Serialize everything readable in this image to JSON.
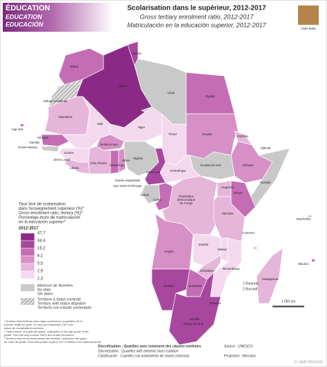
{
  "header": {
    "tags": [
      "ÉDUCATION",
      "EDUCATION",
      "EDUCACIÓN"
    ],
    "title": "Scolarisation dans le supérieur, 2012-2017",
    "subtitle_en": "Gross tertiary enrolment ratio, 2012-2017",
    "subtitle_es": "Matriculación en la educación superior, 2012-2017",
    "logo": "UMR 8586"
  },
  "legend": {
    "title": [
      "Taux brut de scolarisation",
      "dans l'enseignement supérieur (%)*",
      "Gross enrolment ratio, tertiary (%)*",
      "Porcentaje bruto de matriculación",
      "en la educación superior*"
    ],
    "period": "2012-2017",
    "breaks": [
      "47,7",
      "34,4",
      "16,2",
      "9,1",
      "5,5",
      "2,9",
      "2,3"
    ],
    "colors": [
      "#8b2a86",
      "#a8479e",
      "#c46cb4",
      "#d690c6",
      "#e6b6da",
      "#f4d9ee"
    ],
    "no_data": [
      "Absence de données",
      "No data",
      "Sin datos"
    ],
    "no_data_color": "#c9c9c9",
    "disputed": [
      "Territoire à statut contesté",
      "Territory with status disputed",
      "Territorio con estado contestado"
    ]
  },
  "countries": [
    "Maroc",
    "Tunisie",
    "Algérie",
    "Libye",
    "Égypte",
    "Sahara occidental",
    "Mauritanie",
    "Mali",
    "Niger",
    "Tchad",
    "Soudan",
    "Érythrée",
    "Djibouti",
    "Éthiopie",
    "Somalie",
    "Soudan du Sud",
    "Centrafrique",
    "Nigéria",
    "Cameroun",
    "Bénin",
    "Togo",
    "Ghana",
    "Burkina Faso",
    "Côte d'Ivoire",
    "Guinée",
    "Sierra Leone",
    "Libéria",
    "Sénégal",
    "Gambie",
    "Guinée-Bissau",
    "Cap-Vert",
    "Guinée équatoriale",
    "Sao Tomé-et-Principe",
    "Gabon",
    "Congo",
    "République",
    "démocratique",
    "du Congo",
    "Ouganda",
    "Kenya",
    "Tanzanie",
    "Angola",
    "Zambie",
    "Malawi",
    "Mozambique",
    "Zimbabwe",
    "Namibie",
    "Botswana",
    "Afrique du Sud",
    "Madagascar",
    "Comores",
    "Seychelles",
    "Maurice",
    "Lesotho",
    "Eswatini"
  ],
  "inset_notes": [
    "1 Rwanda",
    "2 Burundi"
  ],
  "scale": "1 000 km",
  "footnotes": [
    "* Nombre total d'élèves (tous âges confondus) / population de la",
    "tranche d'âge du cycle. Ce taux peut dépasser 100 % en",
    "raison de scolarisations tardives.",
    "* Total number of pupils (all ages) / population of the age group of the",
    "grade. This rate may exceed 100% due to late enrolment.",
    "* Número total de alumnos (todas las edades) / población del grupo",
    "de edad del grado. Esta tasa puede superar 100 % debido a la matrícula tardía."
  ],
  "method": [
    "Discrétisation : Quartiles avec isolement des classes extrêmes",
    "Discretization : Quartiles with extreme class isolation",
    "Clasificación : Cuartiles con aislamiento de clases extremas"
  ],
  "source": "Source : UNESCO",
  "projection": "Projection : Mercator",
  "credit": "© UMR PRODIG"
}
